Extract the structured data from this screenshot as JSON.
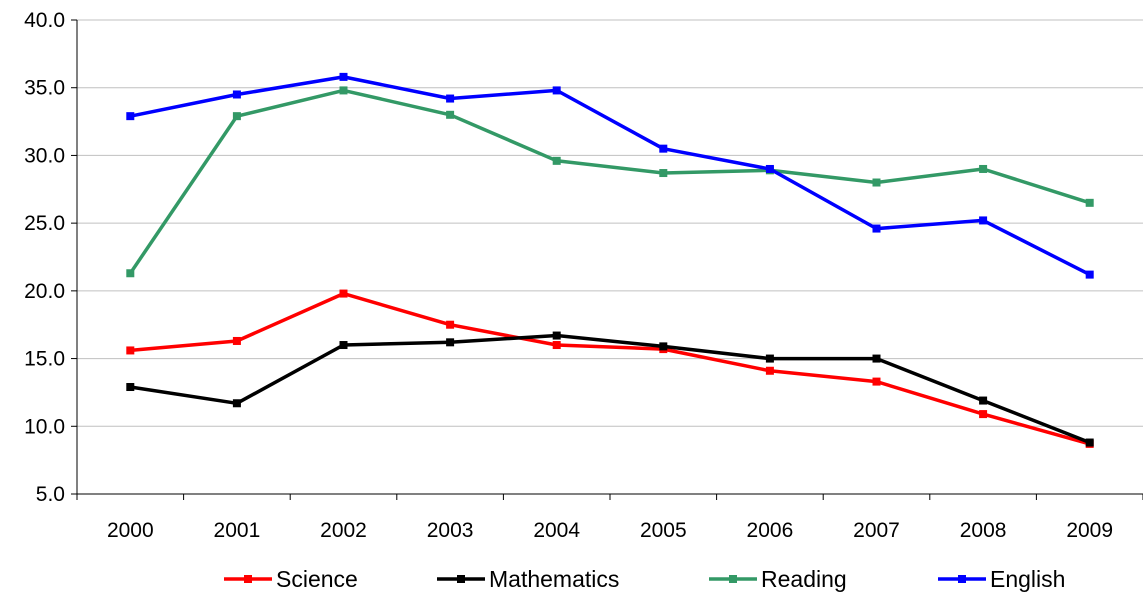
{
  "chart_data": {
    "type": "line",
    "title": "",
    "xlabel": "",
    "ylabel": "",
    "categories": [
      "2000",
      "2001",
      "2002",
      "2003",
      "2004",
      "2005",
      "2006",
      "2007",
      "2008",
      "2009"
    ],
    "ylim": [
      5.0,
      40.0
    ],
    "yticks": [
      "5.0",
      "10.0",
      "15.0",
      "20.0",
      "25.0",
      "30.0",
      "35.0",
      "40.0"
    ],
    "grid": "horizontal",
    "legend": "bottom",
    "series": [
      {
        "name": "Science",
        "color": "#ff0000",
        "values": [
          15.6,
          16.3,
          19.8,
          17.5,
          16.0,
          15.7,
          14.1,
          13.3,
          10.9,
          8.7
        ]
      },
      {
        "name": "Mathematics",
        "color": "#000000",
        "values": [
          12.9,
          11.7,
          16.0,
          16.2,
          16.7,
          15.9,
          15.0,
          15.0,
          11.9,
          8.8
        ]
      },
      {
        "name": "Reading",
        "color": "#339966",
        "values": [
          21.3,
          32.9,
          34.8,
          33.0,
          29.6,
          28.7,
          28.9,
          28.0,
          29.0,
          26.5
        ]
      },
      {
        "name": "English",
        "color": "#0000ff",
        "values": [
          32.9,
          34.5,
          35.8,
          34.2,
          34.8,
          30.5,
          29.0,
          24.6,
          25.2,
          21.2
        ]
      }
    ]
  }
}
